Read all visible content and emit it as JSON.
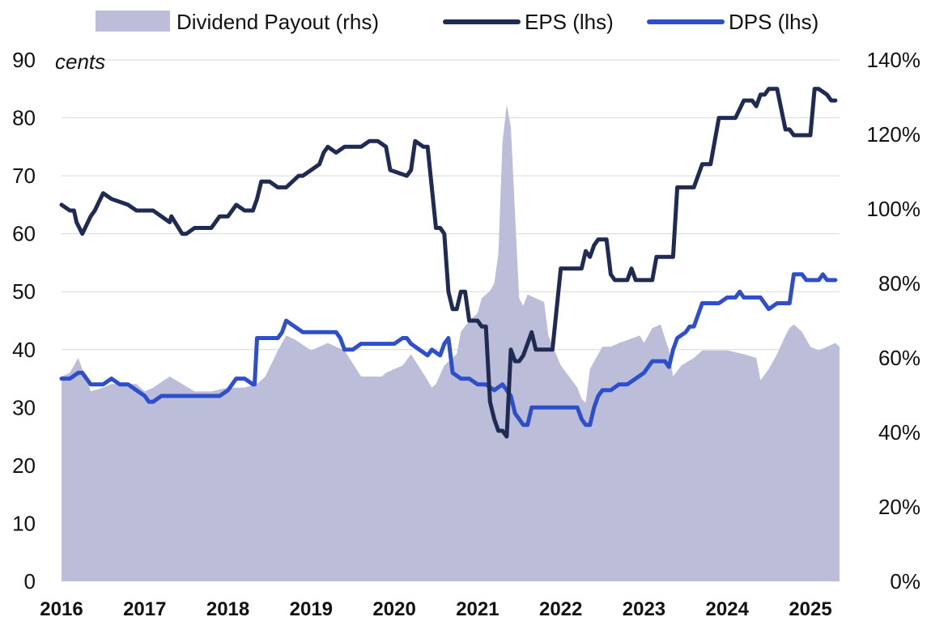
{
  "chart_data": {
    "type": "area",
    "unit_label": "cents",
    "colors": {
      "payout": "#bcbdd9",
      "eps": "#1f2b52",
      "dps": "#2e4fcc",
      "grid": "#d9d9d9"
    },
    "legend": [
      {
        "key": "payout",
        "label": "Dividend Payout (rhs)",
        "kind": "area"
      },
      {
        "key": "eps",
        "label": "EPS (lhs)",
        "kind": "line"
      },
      {
        "key": "dps",
        "label": "DPS (lhs)",
        "kind": "line"
      }
    ],
    "legend_position": "top",
    "grid": true,
    "x_ticks": [
      "2016",
      "2017",
      "2018",
      "2019",
      "2020",
      "2021",
      "2022",
      "2023",
      "2024",
      "2025"
    ],
    "x_range": [
      2016.0,
      2025.35
    ],
    "y_left": {
      "range": [
        0,
        90
      ],
      "ticks": [
        0,
        10,
        20,
        30,
        40,
        50,
        60,
        70,
        80,
        90
      ],
      "tick_labels": [
        "0",
        "10",
        "20",
        "30",
        "40",
        "50",
        "60",
        "70",
        "80",
        "90"
      ]
    },
    "y_right": {
      "range": [
        0,
        140
      ],
      "ticks": [
        0,
        20,
        40,
        60,
        80,
        100,
        120,
        140
      ],
      "tick_labels": [
        "0%",
        "20%",
        "40%",
        "60%",
        "80%",
        "100%",
        "120%",
        "140%"
      ]
    },
    "series": [
      {
        "name": "Dividend Payout (rhs)",
        "axis": "right",
        "x": [
          2016.0,
          2016.1,
          2016.15,
          2016.2,
          2016.25,
          2016.3,
          2016.35,
          2016.5,
          2016.6,
          2016.9,
          2017.0,
          2017.1,
          2017.3,
          2017.6,
          2017.8,
          2018.0,
          2018.2,
          2018.35,
          2018.45,
          2018.6,
          2018.7,
          2018.8,
          2019.0,
          2019.2,
          2019.3,
          2019.4,
          2019.6,
          2019.85,
          2019.9,
          2020.1,
          2020.2,
          2020.4,
          2020.45,
          2020.5,
          2020.6,
          2020.75,
          2020.8,
          2020.9,
          2021.0,
          2021.05,
          2021.1,
          2021.15,
          2021.2,
          2021.25,
          2021.3,
          2021.35,
          2021.4,
          2021.5,
          2021.55,
          2021.6,
          2021.7,
          2021.8,
          2021.85,
          2022.0,
          2022.1,
          2022.2,
          2022.25,
          2022.3,
          2022.35,
          2022.5,
          2022.6,
          2022.7,
          2022.95,
          2023.0,
          2023.1,
          2023.2,
          2023.3,
          2023.35,
          2023.45,
          2023.6,
          2023.7,
          2023.8,
          2024.0,
          2024.2,
          2024.35,
          2024.4,
          2024.5,
          2024.6,
          2024.7,
          2024.75,
          2024.8,
          2024.9,
          2025.0,
          2025.1,
          2025.2,
          2025.3,
          2025.35
        ],
        "values": [
          55,
          56,
          58,
          60,
          57,
          55,
          51,
          52,
          53,
          53,
          51,
          52,
          55,
          51,
          51,
          52,
          52,
          53,
          55,
          62,
          66,
          65,
          62,
          64,
          63,
          62,
          55,
          55,
          56,
          58,
          61,
          54,
          52,
          53,
          58,
          61,
          67,
          70,
          72,
          76,
          77,
          78,
          80,
          88,
          118,
          128,
          122,
          76,
          74,
          77,
          76,
          75,
          66,
          58,
          55,
          52,
          49,
          48,
          57,
          63,
          63,
          64,
          66,
          64,
          68,
          69,
          62,
          55,
          58,
          60,
          62,
          62,
          62,
          61,
          60,
          54,
          57,
          61,
          66,
          68,
          69,
          67,
          63,
          62,
          63,
          64,
          63
        ]
      },
      {
        "name": "EPS (lhs)",
        "axis": "left",
        "x": [
          2016.0,
          2016.1,
          2016.15,
          2016.18,
          2016.25,
          2016.35,
          2016.4,
          2016.5,
          2016.6,
          2016.8,
          2016.9,
          2017.1,
          2017.3,
          2017.32,
          2017.45,
          2017.5,
          2017.6,
          2017.8,
          2017.9,
          2018.0,
          2018.1,
          2018.2,
          2018.3,
          2018.35,
          2018.4,
          2018.5,
          2018.6,
          2018.7,
          2018.85,
          2018.9,
          2019.1,
          2019.15,
          2019.2,
          2019.3,
          2019.4,
          2019.5,
          2019.6,
          2019.7,
          2019.8,
          2019.9,
          2019.95,
          2020.15,
          2020.2,
          2020.25,
          2020.35,
          2020.4,
          2020.5,
          2020.55,
          2020.6,
          2020.65,
          2020.7,
          2020.75,
          2020.8,
          2020.85,
          2020.9,
          2021.0,
          2021.05,
          2021.1,
          2021.15,
          2021.2,
          2021.25,
          2021.3,
          2021.35,
          2021.4,
          2021.45,
          2021.5,
          2021.55,
          2021.6,
          2021.65,
          2021.7,
          2021.75,
          2021.8,
          2021.85,
          2021.9,
          2022.0,
          2022.1,
          2022.15,
          2022.2,
          2022.25,
          2022.3,
          2022.35,
          2022.4,
          2022.45,
          2022.5,
          2022.55,
          2022.6,
          2022.65,
          2022.7,
          2022.75,
          2022.8,
          2022.85,
          2022.9,
          2023.0,
          2023.05,
          2023.1,
          2023.15,
          2023.2,
          2023.3,
          2023.35,
          2023.4,
          2023.5,
          2023.6,
          2023.7,
          2023.8,
          2023.9,
          2024.0,
          2024.1,
          2024.2,
          2024.25,
          2024.3,
          2024.35,
          2024.4,
          2024.45,
          2024.5,
          2024.6,
          2024.7,
          2024.75,
          2024.8,
          2024.85,
          2024.9,
          2024.95,
          2025.0,
          2025.05,
          2025.1,
          2025.2,
          2025.25,
          2025.3
        ],
        "values": [
          65,
          64,
          64,
          62,
          60,
          63,
          64,
          67,
          66,
          65,
          64,
          64,
          62,
          63,
          60,
          60,
          61,
          61,
          63,
          63,
          65,
          64,
          64,
          66,
          69,
          69,
          68,
          68,
          70,
          70,
          72,
          74,
          75,
          74,
          75,
          75,
          75,
          76,
          76,
          75,
          71,
          70,
          71,
          76,
          75,
          75,
          61,
          61,
          60,
          50,
          47,
          47,
          50,
          50,
          45,
          45,
          44,
          44,
          31,
          28,
          26,
          26,
          25,
          40,
          38,
          38,
          39,
          41,
          43,
          40,
          40,
          40,
          40,
          40,
          54,
          54,
          54,
          54,
          54,
          57,
          56,
          58,
          59,
          59,
          59,
          53,
          52,
          52,
          52,
          52,
          54,
          52,
          52,
          52,
          52,
          56,
          56,
          56,
          56,
          68,
          68,
          68,
          72,
          72,
          80,
          80,
          80,
          83,
          83,
          83,
          82,
          84,
          84,
          85,
          85,
          78,
          78,
          77,
          77,
          77,
          77,
          77,
          85,
          85,
          84,
          83,
          83
        ]
      },
      {
        "name": "DPS (lhs)",
        "axis": "left",
        "x": [
          2016.0,
          2016.1,
          2016.2,
          2016.25,
          2016.3,
          2016.35,
          2016.4,
          2016.5,
          2016.6,
          2016.7,
          2016.8,
          2016.9,
          2017.0,
          2017.05,
          2017.1,
          2017.2,
          2017.3,
          2017.4,
          2017.5,
          2017.6,
          2017.7,
          2017.8,
          2017.9,
          2018.0,
          2018.05,
          2018.1,
          2018.2,
          2018.3,
          2018.32,
          2018.35,
          2018.5,
          2018.6,
          2018.65,
          2018.7,
          2018.8,
          2018.9,
          2019.0,
          2019.1,
          2019.2,
          2019.3,
          2019.35,
          2019.4,
          2019.5,
          2019.6,
          2019.7,
          2019.8,
          2019.9,
          2020.0,
          2020.1,
          2020.15,
          2020.2,
          2020.3,
          2020.4,
          2020.45,
          2020.55,
          2020.6,
          2020.65,
          2020.7,
          2020.8,
          2020.9,
          2021.0,
          2021.1,
          2021.2,
          2021.3,
          2021.35,
          2021.4,
          2021.45,
          2021.5,
          2021.55,
          2021.6,
          2021.65,
          2021.7,
          2021.8,
          2021.9,
          2022.0,
          2022.1,
          2022.2,
          2022.25,
          2022.3,
          2022.35,
          2022.4,
          2022.45,
          2022.5,
          2022.6,
          2022.7,
          2022.8,
          2022.9,
          2023.0,
          2023.1,
          2023.15,
          2023.2,
          2023.25,
          2023.3,
          2023.35,
          2023.4,
          2023.5,
          2023.55,
          2023.6,
          2023.7,
          2023.8,
          2023.9,
          2024.0,
          2024.1,
          2024.15,
          2024.2,
          2024.25,
          2024.3,
          2024.35,
          2024.4,
          2024.5,
          2024.6,
          2024.65,
          2024.7,
          2024.75,
          2024.8,
          2024.85,
          2024.9,
          2024.95,
          2025.0,
          2025.1,
          2025.15,
          2025.2,
          2025.25,
          2025.3
        ],
        "values": [
          35,
          35,
          36,
          36,
          35,
          34,
          34,
          34,
          35,
          34,
          34,
          33,
          32,
          31,
          31,
          32,
          32,
          32,
          32,
          32,
          32,
          32,
          32,
          33,
          34,
          35,
          35,
          34,
          34,
          42,
          42,
          42,
          43,
          45,
          44,
          43,
          43,
          43,
          43,
          43,
          42,
          40,
          40,
          41,
          41,
          41,
          41,
          41,
          42,
          42,
          41,
          40,
          39,
          40,
          39,
          41,
          42,
          36,
          35,
          35,
          34,
          34,
          33,
          34,
          33,
          32,
          29,
          28,
          27,
          27,
          30,
          30,
          30,
          30,
          30,
          30,
          30,
          28,
          27,
          27,
          30,
          32,
          33,
          33,
          34,
          34,
          35,
          36,
          38,
          38,
          38,
          38,
          37,
          40,
          42,
          43,
          44,
          44,
          48,
          48,
          48,
          49,
          49,
          50,
          49,
          49,
          49,
          49,
          49,
          47,
          48,
          48,
          48,
          48,
          53,
          53,
          53,
          52,
          52,
          52,
          53,
          52,
          52,
          52
        ]
      }
    ]
  }
}
